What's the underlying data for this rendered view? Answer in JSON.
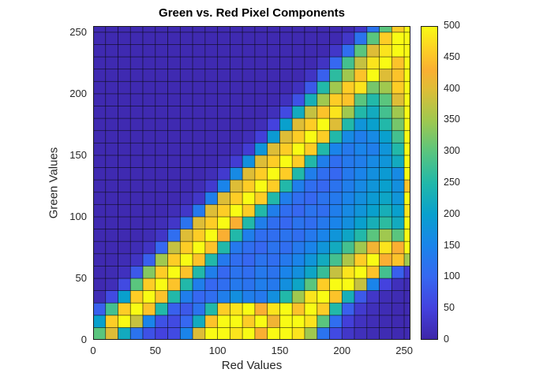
{
  "figure": {
    "background": "#ffffff"
  },
  "chart_data": {
    "type": "heatmap",
    "title": "Green vs. Red Pixel Components",
    "xlabel": "Red Values",
    "ylabel": "Green Values",
    "xlim": [
      0,
      255
    ],
    "ylim": [
      0,
      255
    ],
    "x_ticks": [
      0,
      50,
      100,
      150,
      200,
      250
    ],
    "y_ticks": [
      0,
      50,
      100,
      150,
      200,
      250
    ],
    "bin_width": 10,
    "grid_lines": true,
    "legend_position": "none",
    "colormap": "parula",
    "colormap_stops": [
      [
        0.0,
        "#3e26a8"
      ],
      [
        0.1,
        "#4442de"
      ],
      [
        0.2,
        "#3668f1"
      ],
      [
        0.3,
        "#1a84ea"
      ],
      [
        0.4,
        "#09a0cd"
      ],
      [
        0.5,
        "#22b8a9"
      ],
      [
        0.6,
        "#5ac57e"
      ],
      [
        0.7,
        "#a0c84f"
      ],
      [
        0.8,
        "#debd37"
      ],
      [
        0.86,
        "#faaf32"
      ],
      [
        0.93,
        "#fdd224"
      ],
      [
        1.0,
        "#f9fb14"
      ]
    ],
    "colorbar": {
      "position": "right",
      "min": 0,
      "max": 500,
      "ticks": [
        0,
        50,
        100,
        150,
        200,
        250,
        300,
        350,
        400,
        450,
        500
      ]
    },
    "matrix_rows_bottom_to_top": true,
    "matrix": [
      [
        300,
        400,
        220,
        120,
        70,
        50,
        60,
        150,
        400,
        500,
        500,
        480,
        500,
        430,
        500,
        500,
        480,
        350,
        120,
        60,
        30,
        18,
        12,
        10,
        8,
        8
      ],
      [
        200,
        460,
        500,
        380,
        150,
        70,
        60,
        100,
        220,
        450,
        500,
        500,
        460,
        500,
        420,
        500,
        500,
        480,
        300,
        110,
        45,
        22,
        14,
        10,
        8,
        8
      ],
      [
        90,
        280,
        460,
        500,
        450,
        250,
        90,
        80,
        120,
        250,
        460,
        480,
        500,
        430,
        480,
        500,
        450,
        500,
        460,
        250,
        90,
        35,
        18,
        12,
        8,
        8
      ],
      [
        12,
        60,
        200,
        460,
        500,
        450,
        250,
        140,
        100,
        110,
        140,
        170,
        140,
        130,
        170,
        250,
        350,
        480,
        500,
        450,
        230,
        80,
        30,
        14,
        10,
        8
      ],
      [
        8,
        15,
        60,
        300,
        460,
        500,
        450,
        250,
        140,
        100,
        110,
        130,
        120,
        140,
        130,
        170,
        210,
        300,
        460,
        500,
        500,
        380,
        150,
        50,
        18,
        10
      ],
      [
        8,
        10,
        20,
        80,
        330,
        460,
        500,
        450,
        250,
        140,
        100,
        120,
        110,
        130,
        120,
        150,
        170,
        210,
        270,
        380,
        480,
        500,
        450,
        280,
        90,
        35
      ],
      [
        8,
        8,
        12,
        25,
        90,
        350,
        460,
        500,
        450,
        250,
        130,
        110,
        100,
        120,
        110,
        130,
        150,
        180,
        220,
        280,
        360,
        460,
        500,
        430,
        450,
        350
      ],
      [
        8,
        8,
        8,
        12,
        25,
        100,
        380,
        460,
        500,
        450,
        250,
        130,
        110,
        100,
        120,
        110,
        130,
        150,
        180,
        220,
        280,
        350,
        420,
        480,
        430,
        500
      ],
      [
        8,
        8,
        8,
        8,
        12,
        28,
        110,
        400,
        460,
        500,
        430,
        250,
        140,
        110,
        110,
        120,
        110,
        130,
        150,
        180,
        210,
        250,
        300,
        350,
        300,
        500
      ],
      [
        8,
        8,
        8,
        8,
        8,
        14,
        30,
        120,
        400,
        460,
        500,
        430,
        250,
        140,
        110,
        100,
        120,
        110,
        130,
        150,
        170,
        200,
        230,
        260,
        220,
        500
      ],
      [
        8,
        8,
        8,
        8,
        8,
        8,
        14,
        30,
        130,
        400,
        460,
        500,
        460,
        250,
        140,
        110,
        100,
        120,
        110,
        140,
        160,
        180,
        200,
        230,
        200,
        480
      ],
      [
        8,
        8,
        8,
        8,
        8,
        8,
        8,
        14,
        30,
        140,
        400,
        460,
        500,
        460,
        250,
        140,
        110,
        100,
        120,
        130,
        150,
        170,
        190,
        210,
        180,
        500
      ],
      [
        8,
        8,
        8,
        8,
        8,
        8,
        8,
        8,
        14,
        35,
        150,
        400,
        460,
        500,
        460,
        250,
        140,
        110,
        100,
        120,
        140,
        160,
        180,
        200,
        170,
        450
      ],
      [
        8,
        8,
        8,
        8,
        8,
        8,
        8,
        8,
        8,
        14,
        35,
        160,
        400,
        460,
        500,
        460,
        250,
        140,
        110,
        100,
        130,
        150,
        170,
        190,
        160,
        500
      ],
      [
        8,
        8,
        8,
        8,
        8,
        8,
        8,
        8,
        8,
        8,
        15,
        40,
        170,
        400,
        460,
        500,
        460,
        250,
        140,
        110,
        130,
        140,
        160,
        180,
        220,
        500
      ],
      [
        8,
        8,
        8,
        8,
        8,
        8,
        8,
        8,
        8,
        8,
        8,
        15,
        40,
        180,
        400,
        460,
        500,
        460,
        250,
        150,
        130,
        150,
        140,
        180,
        250,
        500
      ],
      [
        8,
        8,
        8,
        8,
        8,
        8,
        8,
        8,
        8,
        8,
        8,
        8,
        15,
        45,
        190,
        400,
        460,
        500,
        460,
        250,
        160,
        140,
        160,
        200,
        280,
        500
      ],
      [
        8,
        8,
        8,
        8,
        8,
        8,
        8,
        8,
        8,
        8,
        8,
        8,
        8,
        15,
        50,
        200,
        400,
        460,
        500,
        400,
        250,
        180,
        200,
        250,
        320,
        500
      ],
      [
        8,
        8,
        8,
        8,
        8,
        8,
        8,
        8,
        8,
        8,
        8,
        8,
        8,
        8,
        18,
        60,
        220,
        380,
        450,
        480,
        350,
        250,
        220,
        280,
        350,
        500
      ],
      [
        8,
        8,
        8,
        8,
        8,
        8,
        8,
        8,
        8,
        8,
        8,
        8,
        8,
        8,
        8,
        20,
        70,
        230,
        350,
        460,
        450,
        300,
        250,
        300,
        400,
        500
      ],
      [
        8,
        8,
        8,
        8,
        8,
        8,
        8,
        8,
        8,
        8,
        8,
        8,
        8,
        8,
        8,
        8,
        20,
        80,
        250,
        350,
        460,
        480,
        320,
        350,
        460,
        500
      ],
      [
        8,
        8,
        8,
        8,
        8,
        8,
        8,
        8,
        8,
        8,
        8,
        8,
        8,
        8,
        8,
        8,
        8,
        25,
        90,
        260,
        350,
        450,
        500,
        400,
        450,
        500
      ],
      [
        8,
        8,
        8,
        8,
        8,
        8,
        8,
        8,
        8,
        8,
        8,
        8,
        8,
        8,
        8,
        8,
        8,
        8,
        25,
        100,
        280,
        380,
        480,
        500,
        450,
        500
      ],
      [
        8,
        8,
        8,
        8,
        8,
        8,
        8,
        8,
        8,
        8,
        8,
        8,
        8,
        8,
        8,
        8,
        8,
        8,
        8,
        30,
        110,
        300,
        400,
        480,
        500,
        500
      ],
      [
        8,
        8,
        8,
        8,
        8,
        8,
        8,
        8,
        8,
        8,
        8,
        8,
        8,
        8,
        8,
        8,
        8,
        8,
        8,
        8,
        30,
        120,
        300,
        460,
        500,
        500
      ],
      [
        8,
        8,
        8,
        8,
        8,
        8,
        8,
        8,
        8,
        8,
        8,
        8,
        8,
        8,
        8,
        8,
        8,
        8,
        8,
        8,
        8,
        30,
        120,
        300,
        460,
        500
      ]
    ]
  }
}
